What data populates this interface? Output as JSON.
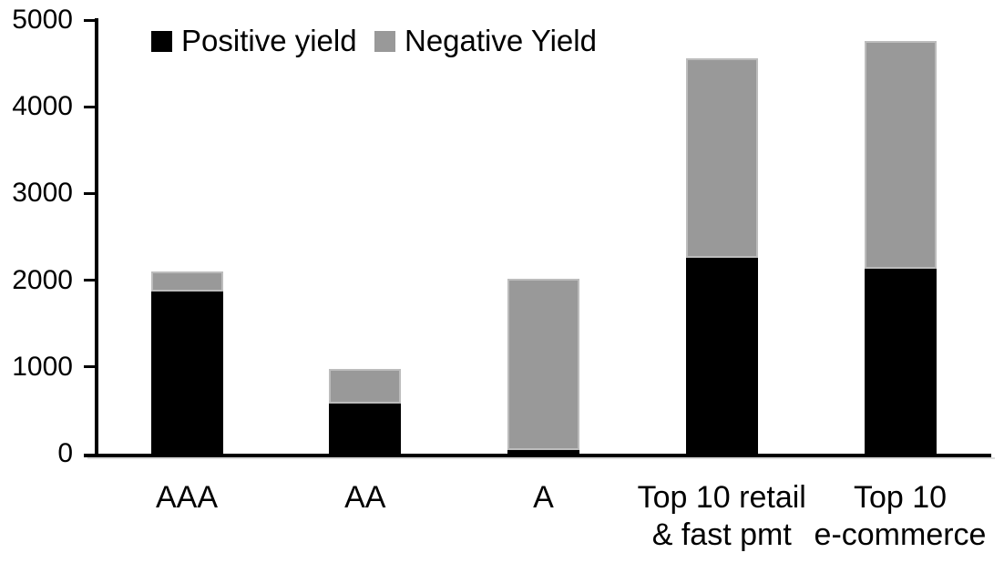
{
  "chart_data": {
    "type": "bar",
    "stacked": true,
    "title": "",
    "legend_position": "top",
    "grid": false,
    "categories": [
      "AAA",
      "AA",
      "A",
      "Top 10 retail & fast pmt",
      "Top 10 e-commerce"
    ],
    "category_label_lines": [
      [
        "AAA"
      ],
      [
        "AA"
      ],
      [
        "A"
      ],
      [
        "Top 10 retail",
        "& fast pmt"
      ],
      [
        "Top 10",
        "e-commerce"
      ]
    ],
    "series": [
      {
        "name": "Positive yield",
        "color": "#000000",
        "values": [
          1870,
          580,
          40,
          2260,
          2130
        ]
      },
      {
        "name": "Negative Yield",
        "color": "#999999",
        "values": [
          230,
          395,
          1980,
          2300,
          2630
        ]
      }
    ],
    "stack_totals": [
      2100,
      975,
      2020,
      4560,
      4760
    ],
    "ylim": [
      0,
      5000
    ],
    "yticks": [
      0,
      1000,
      2000,
      3000,
      4000,
      5000
    ],
    "ytick_labels": [
      "0",
      "1000",
      "2000",
      "3000",
      "4000",
      "5000"
    ],
    "xlabel": "",
    "ylabel": ""
  },
  "colors": {
    "positive_yield": "#000000",
    "negative_yield": "#999999",
    "axis": "#000000",
    "background": "#ffffff"
  }
}
